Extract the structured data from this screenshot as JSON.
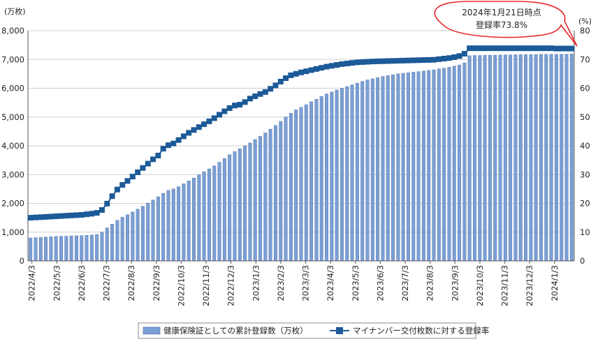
{
  "chart_data": {
    "type": "bar",
    "title": "",
    "units": {
      "left": "(万枚)",
      "right": "(%)"
    },
    "ylim_left": [
      0,
      8000
    ],
    "ylim_right": [
      0,
      80
    ],
    "y_ticks_left": [
      "0",
      "1,000",
      "2,000",
      "3,000",
      "4,000",
      "5,000",
      "6,000",
      "7,000",
      "8,000"
    ],
    "y_ticks_right": [
      "0",
      "10",
      "20",
      "30",
      "40",
      "50",
      "60",
      "70",
      "80"
    ],
    "x_tick_labels": [
      "2022/4/3",
      "2022/5/3",
      "2022/6/3",
      "2022/7/3",
      "2022/8/3",
      "2022/9/3",
      "2022/10/3",
      "2022/11/3",
      "2022/12/3",
      "2023/1/3",
      "2023/2/3",
      "2023/3/3",
      "2023/4/3",
      "2023/5/3",
      "2023/6/3",
      "2023/7/3",
      "2023/8/3",
      "2023/9/3",
      "2023/10/3",
      "2023/11/3",
      "2023/12/3",
      "2024/1/3"
    ],
    "grid": true,
    "legend_position": "bottom-center",
    "callout": {
      "line1": "2024年1月21日時点",
      "line2": "登録率73.8%"
    },
    "series": [
      {
        "name": "健康保険証としての累計登録数（万枚）",
        "type": "bar",
        "axis": "left",
        "color": "#7b9fd4",
        "values": [
          800,
          810,
          820,
          830,
          840,
          850,
          855,
          860,
          870,
          875,
          880,
          890,
          900,
          920,
          1000,
          1150,
          1280,
          1410,
          1520,
          1610,
          1700,
          1800,
          1900,
          2010,
          2120,
          2230,
          2350,
          2450,
          2500,
          2580,
          2680,
          2780,
          2880,
          2990,
          3100,
          3200,
          3300,
          3430,
          3560,
          3690,
          3800,
          3900,
          4000,
          4100,
          4220,
          4330,
          4450,
          4580,
          4710,
          4850,
          5000,
          5130,
          5250,
          5340,
          5430,
          5530,
          5620,
          5720,
          5800,
          5870,
          5940,
          6000,
          6060,
          6120,
          6180,
          6240,
          6290,
          6330,
          6370,
          6410,
          6440,
          6470,
          6500,
          6520,
          6540,
          6560,
          6580,
          6600,
          6620,
          6640,
          6670,
          6700,
          6730,
          6770,
          6810,
          6880,
          7130,
          7140,
          7140,
          7145,
          7150,
          7150,
          7155,
          7160,
          7160,
          7165,
          7170,
          7170,
          7170,
          7175,
          7180,
          7180,
          7180,
          7180,
          7180,
          7185,
          7190
        ]
      },
      {
        "name": "マイナンバー交付枚数に対する登録率",
        "type": "line",
        "axis": "right",
        "color": "#1c5a98",
        "values": [
          15.0,
          15.1,
          15.2,
          15.3,
          15.4,
          15.5,
          15.6,
          15.7,
          15.8,
          15.9,
          16.0,
          16.2,
          16.4,
          16.7,
          17.7,
          19.9,
          22.5,
          24.8,
          26.4,
          27.8,
          29.3,
          30.8,
          32.3,
          33.8,
          35.3,
          36.6,
          39.0,
          40.2,
          40.8,
          42.0,
          43.3,
          44.5,
          45.5,
          46.5,
          47.5,
          48.5,
          49.6,
          50.8,
          52.0,
          53.1,
          54.0,
          54.3,
          55.2,
          56.4,
          57.2,
          58.0,
          58.7,
          59.8,
          61.0,
          62.3,
          63.5,
          64.5,
          65.0,
          65.5,
          65.9,
          66.3,
          66.7,
          67.1,
          67.5,
          67.8,
          68.1,
          68.4,
          68.6,
          68.8,
          69.0,
          69.1,
          69.2,
          69.3,
          69.35,
          69.4,
          69.45,
          69.5,
          69.55,
          69.6,
          69.65,
          69.7,
          69.75,
          69.8,
          69.85,
          69.9,
          70.1,
          70.3,
          70.5,
          70.8,
          71.2,
          72.0,
          73.9,
          73.9,
          73.9,
          73.9,
          73.9,
          73.9,
          73.9,
          73.9,
          73.9,
          73.9,
          73.9,
          73.9,
          73.9,
          73.9,
          73.9,
          73.9,
          73.9,
          73.8,
          73.8,
          73.8,
          73.8
        ]
      }
    ]
  }
}
